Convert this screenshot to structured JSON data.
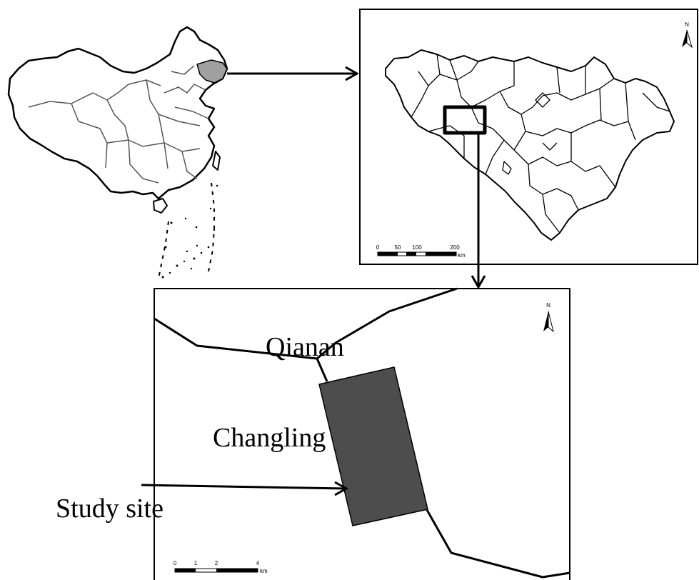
{
  "labels": {
    "city_north": "Qianan",
    "city_south": "Changling",
    "study_site": "Study site"
  },
  "north_arrow_symbol": "N",
  "scale_bar_province": {
    "ticks": [
      "0",
      "50",
      "100",
      "200"
    ],
    "unit": "km"
  },
  "scale_bar_site": {
    "ticks": [
      "0",
      "1",
      "2",
      "4"
    ],
    "unit": "km"
  },
  "colors": {
    "highlight_fill": "#a0a0a0",
    "study_area_fill": "#4d4d4d",
    "line": "#000000"
  }
}
